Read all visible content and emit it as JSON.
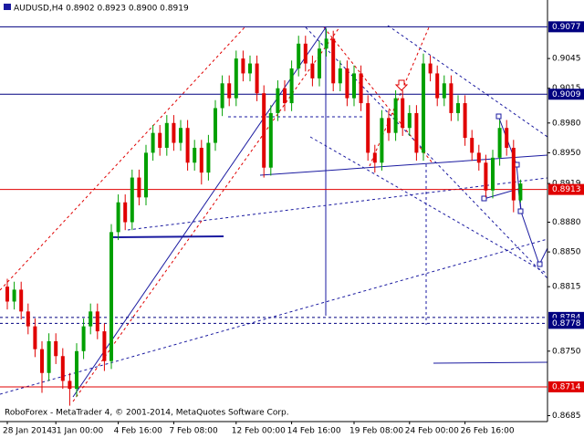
{
  "chart_data": {
    "type": "candlestick",
    "title": "AUDUSD,H4  0.8902 0.8923 0.8900 0.8919",
    "footer": "RoboForex - MetaTrader 4, © 2001-2014, MetaQuotes Software Corp.",
    "up_color": "#00a000",
    "down_color": "#e00000",
    "categories": [
      "28 Jan 2014",
      null,
      null,
      null,
      null,
      null,
      null,
      "31 Jan 00:00",
      null,
      null,
      null,
      null,
      null,
      null,
      null,
      null,
      "4 Feb 16:00",
      null,
      null,
      null,
      null,
      null,
      null,
      null,
      "7 Feb 08:00",
      null,
      null,
      null,
      null,
      null,
      null,
      null,
      null,
      "12 Feb 00:00",
      null,
      null,
      null,
      null,
      null,
      null,
      null,
      "14 Feb 16:00",
      null,
      null,
      null,
      null,
      null,
      null,
      null,
      null,
      "19 Feb 08:00",
      null,
      null,
      null,
      null,
      null,
      null,
      null,
      "24 Feb 00:00",
      null,
      null,
      null,
      null,
      null,
      null,
      null,
      "26 Feb 16:00",
      null,
      null,
      null,
      null,
      null,
      null,
      null,
      null
    ],
    "open": [
      0.8815,
      0.88,
      0.8812,
      0.879,
      0.8775,
      0.8752,
      0.8728,
      0.876,
      0.8745,
      0.872,
      0.8712,
      0.875,
      0.8775,
      0.879,
      0.877,
      0.874,
      0.887,
      0.89,
      0.888,
      0.8925,
      0.8905,
      0.895,
      0.897,
      0.8955,
      0.898,
      0.896,
      0.8975,
      0.894,
      0.8955,
      0.893,
      0.896,
      0.8995,
      0.902,
      0.9005,
      0.9045,
      0.903,
      0.904,
      0.901,
      0.8935,
      0.899,
      0.9015,
      0.9,
      0.9035,
      0.906,
      0.904,
      0.9025,
      0.9055,
      0.9065,
      0.902,
      0.9035,
      0.9005,
      0.903,
      0.9,
      0.895,
      0.894,
      0.8985,
      0.897,
      0.9005,
      0.8975,
      0.899,
      0.895,
      0.904,
      0.903,
      0.9005,
      0.902,
      0.899,
      0.9,
      0.8965,
      0.895,
      0.894,
      0.8912,
      0.8945,
      0.8975,
      0.8955,
      0.8902
    ],
    "high": [
      0.8823,
      0.882,
      0.882,
      0.8798,
      0.8783,
      0.876,
      0.8768,
      0.8768,
      0.8753,
      0.8728,
      0.8758,
      0.8783,
      0.8798,
      0.8798,
      0.8778,
      0.8878,
      0.8908,
      0.8908,
      0.8933,
      0.8933,
      0.8958,
      0.8978,
      0.8978,
      0.8988,
      0.8988,
      0.8983,
      0.8983,
      0.8963,
      0.8963,
      0.8968,
      0.9003,
      0.9028,
      0.9028,
      0.9053,
      0.9053,
      0.9048,
      0.9048,
      0.9018,
      0.8998,
      0.9023,
      0.9023,
      0.9043,
      0.9068,
      0.9068,
      0.9048,
      0.9063,
      0.9075,
      0.9073,
      0.9043,
      0.9043,
      0.9038,
      0.9038,
      0.9008,
      0.8958,
      0.8993,
      0.8993,
      0.9013,
      0.9013,
      0.8998,
      0.8998,
      0.905,
      0.9048,
      0.9038,
      0.9028,
      0.9028,
      0.9008,
      0.9008,
      0.8973,
      0.8958,
      0.8948,
      0.8953,
      0.8983,
      0.8983,
      0.8963,
      0.8923
    ],
    "low": [
      0.8792,
      0.8792,
      0.8782,
      0.8767,
      0.8744,
      0.8708,
      0.872,
      0.8737,
      0.8712,
      0.8695,
      0.8704,
      0.8742,
      0.8767,
      0.8762,
      0.873,
      0.8732,
      0.8862,
      0.8872,
      0.8872,
      0.8897,
      0.8897,
      0.8942,
      0.8947,
      0.8947,
      0.8952,
      0.8952,
      0.8932,
      0.8932,
      0.8918,
      0.8922,
      0.8952,
      0.8987,
      0.8997,
      0.8997,
      0.9022,
      0.9022,
      0.9002,
      0.8925,
      0.8927,
      0.8982,
      0.8992,
      0.8992,
      0.9027,
      0.9032,
      0.9017,
      0.9017,
      0.9047,
      0.9012,
      0.9012,
      0.8997,
      0.8997,
      0.8992,
      0.8942,
      0.893,
      0.8932,
      0.8962,
      0.8962,
      0.8967,
      0.8967,
      0.8942,
      0.8942,
      0.9022,
      0.8997,
      0.8997,
      0.8982,
      0.8982,
      0.8957,
      0.8942,
      0.8932,
      0.8905,
      0.8904,
      0.8937,
      0.8947,
      0.889,
      0.89
    ],
    "close": [
      0.88,
      0.8812,
      0.879,
      0.8775,
      0.8752,
      0.8728,
      0.876,
      0.8745,
      0.872,
      0.8712,
      0.875,
      0.8775,
      0.879,
      0.877,
      0.874,
      0.887,
      0.89,
      0.888,
      0.8925,
      0.8905,
      0.895,
      0.897,
      0.8955,
      0.898,
      0.896,
      0.8975,
      0.894,
      0.8955,
      0.893,
      0.896,
      0.8995,
      0.902,
      0.9005,
      0.9045,
      0.903,
      0.904,
      0.901,
      0.8935,
      0.899,
      0.9015,
      0.9,
      0.9035,
      0.906,
      0.904,
      0.9025,
      0.9055,
      0.9065,
      0.902,
      0.9035,
      0.9005,
      0.903,
      0.9,
      0.895,
      0.894,
      0.8985,
      0.897,
      0.9005,
      0.8975,
      0.899,
      0.895,
      0.904,
      0.903,
      0.9005,
      0.902,
      0.899,
      0.9,
      0.8965,
      0.895,
      0.894,
      0.8912,
      0.8945,
      0.8975,
      0.8955,
      0.8902,
      0.8919
    ],
    "ylim": [
      0.8679,
      0.9104
    ],
    "yticks": [
      0.9045,
      0.9015,
      {
        "value": 0.898,
        "label": "0.8980"
      },
      {
        "value": 0.895,
        "label": "0.8950"
      },
      0.8919,
      {
        "value": 0.888,
        "label": "0.8880"
      },
      {
        "value": 0.885,
        "label": "0.8850"
      },
      0.8815,
      {
        "value": 0.875,
        "label": "0.8750"
      },
      0.8685
    ],
    "levels": [
      {
        "value": 0.9077,
        "color": "#000080",
        "dashed": false
      },
      {
        "value": 0.9009,
        "color": "#000080",
        "dashed": false
      },
      {
        "value": 0.8913,
        "color": "#e00000",
        "dashed": false
      },
      {
        "value": 0.8784,
        "color": "#000080",
        "dashed": true
      },
      {
        "value": 0.8778,
        "color": "#000080",
        "dashed": true
      },
      {
        "value": 0.8714,
        "color": "#e00000",
        "dashed": false
      }
    ]
  }
}
